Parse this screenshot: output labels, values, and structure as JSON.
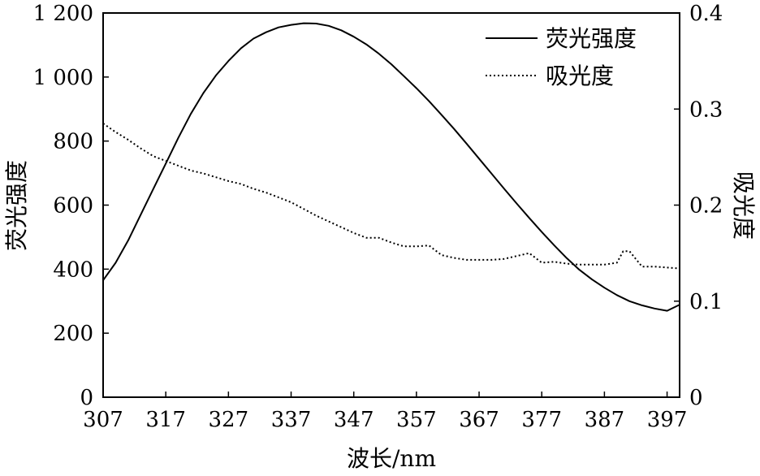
{
  "chart_data": {
    "type": "line",
    "xlabel": "波长/nm",
    "ylabel_left": "荧光强度",
    "ylabel_right": "吸光度",
    "xlim": [
      307,
      399
    ],
    "ylim_left": [
      0,
      1200
    ],
    "ylim_right": [
      0,
      0.4
    ],
    "x_ticks": [
      307,
      317,
      327,
      337,
      347,
      357,
      367,
      377,
      387,
      397
    ],
    "x_tick_labels": [
      "307",
      "317",
      "327",
      "337",
      "347",
      "357",
      "367",
      "377",
      "387",
      "397"
    ],
    "y_left_ticks": [
      0,
      200,
      400,
      600,
      800,
      1000,
      1200
    ],
    "y_left_tick_labels": [
      "0",
      "200",
      "400",
      "600",
      "800",
      "1 000",
      "1 200"
    ],
    "y_right_ticks": [
      0,
      0.1,
      0.2,
      0.3,
      0.4
    ],
    "y_right_tick_labels": [
      "0",
      "0.1",
      "0.2",
      "0.3",
      "0.4"
    ],
    "legend_position": "top-right",
    "series": [
      {
        "name": "荧光强度",
        "axis": "left",
        "style": "solid",
        "color": "#000000",
        "x": [
          307,
          309,
          311,
          313,
          315,
          317,
          319,
          321,
          323,
          325,
          327,
          329,
          331,
          333,
          335,
          337,
          339,
          341,
          343,
          345,
          347,
          349,
          351,
          353,
          355,
          357,
          359,
          361,
          363,
          365,
          367,
          369,
          371,
          373,
          375,
          377,
          379,
          381,
          383,
          385,
          387,
          389,
          391,
          393,
          395,
          397,
          399
        ],
        "values": [
          365,
          420,
          490,
          570,
          650,
          730,
          810,
          885,
          950,
          1005,
          1050,
          1090,
          1120,
          1140,
          1155,
          1163,
          1168,
          1167,
          1160,
          1146,
          1126,
          1102,
          1073,
          1040,
          1003,
          965,
          925,
          882,
          838,
          792,
          745,
          698,
          651,
          605,
          560,
          516,
          474,
          434,
          398,
          368,
          342,
          319,
          300,
          287,
          277,
          270,
          289
        ]
      },
      {
        "name": "吸光度",
        "axis": "right",
        "style": "dotted",
        "color": "#000000",
        "x": [
          307,
          309,
          311,
          313,
          315,
          317,
          319,
          321,
          323,
          325,
          327,
          329,
          331,
          333,
          335,
          337,
          339,
          341,
          343,
          345,
          347,
          349,
          351,
          353,
          355,
          357,
          359,
          361,
          363,
          365,
          367,
          369,
          371,
          373,
          375,
          377,
          379,
          381,
          383,
          385,
          387,
          389,
          390,
          391,
          393,
          395,
          397,
          399
        ],
        "values": [
          0.285,
          0.276,
          0.268,
          0.259,
          0.251,
          0.246,
          0.241,
          0.236,
          0.233,
          0.229,
          0.225,
          0.222,
          0.217,
          0.213,
          0.208,
          0.203,
          0.196,
          0.189,
          0.183,
          0.177,
          0.171,
          0.166,
          0.166,
          0.161,
          0.157,
          0.157,
          0.158,
          0.148,
          0.145,
          0.143,
          0.143,
          0.143,
          0.144,
          0.147,
          0.15,
          0.14,
          0.141,
          0.139,
          0.138,
          0.138,
          0.138,
          0.14,
          0.152,
          0.152,
          0.136,
          0.136,
          0.135,
          0.134
        ]
      }
    ]
  }
}
